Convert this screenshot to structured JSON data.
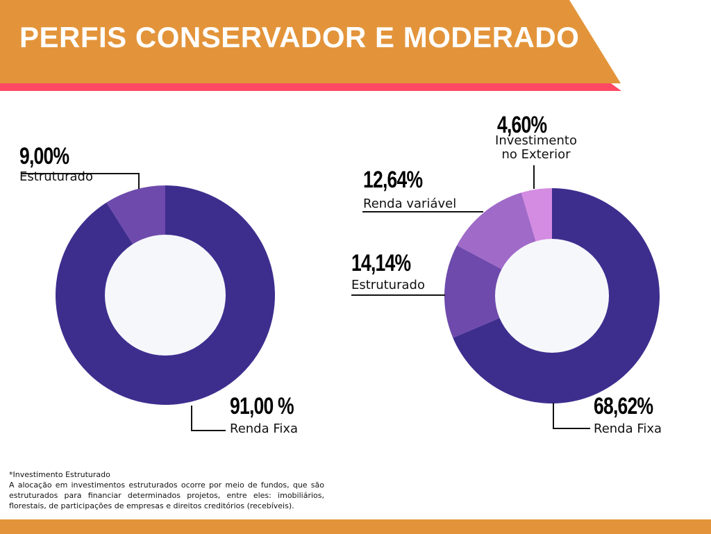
{
  "header": {
    "title": "PERFIS CONSERVADOR E MODERADO"
  },
  "colors": {
    "header": "#E3943A",
    "accent_strip": "#FF4964",
    "renda_fixa": "#3D2E8E",
    "estruturado": "#6E4AAC",
    "renda_variavel": "#A06AC8",
    "exterior": "#D48BE2",
    "donut_hole": "#F6F7FB"
  },
  "chart_data": [
    {
      "type": "pie",
      "subtype": "donut",
      "categories": [
        "Renda Fixa",
        "Estruturado"
      ],
      "values": [
        91.0,
        9.0
      ],
      "value_labels": [
        "91,00 %",
        "9,00%"
      ],
      "colors": [
        "#3D2E8E",
        "#6E4AAC"
      ]
    },
    {
      "type": "pie",
      "subtype": "donut",
      "categories": [
        "Renda Fixa",
        "Estruturado",
        "Renda variável",
        "Investimento no Exterior"
      ],
      "label_lines": {
        "exterior": [
          "Investimento",
          "no Exterior"
        ]
      },
      "values": [
        68.62,
        14.14,
        12.64,
        4.6
      ],
      "value_labels": [
        "68,62%",
        "14,14%",
        "12,64%",
        "4,60%"
      ],
      "colors": [
        "#3D2E8E",
        "#6E4AAC",
        "#A06AC8",
        "#D48BE2"
      ]
    }
  ],
  "note": {
    "title": "*Investimento Estruturado",
    "body": "A alocação em investimentos estruturados ocorre por meio de fundos, que são estruturados para financiar determinados projetos, entre eles: imobiliários, florestais, de participações de empresas e direitos creditórios (recebíveis)."
  }
}
